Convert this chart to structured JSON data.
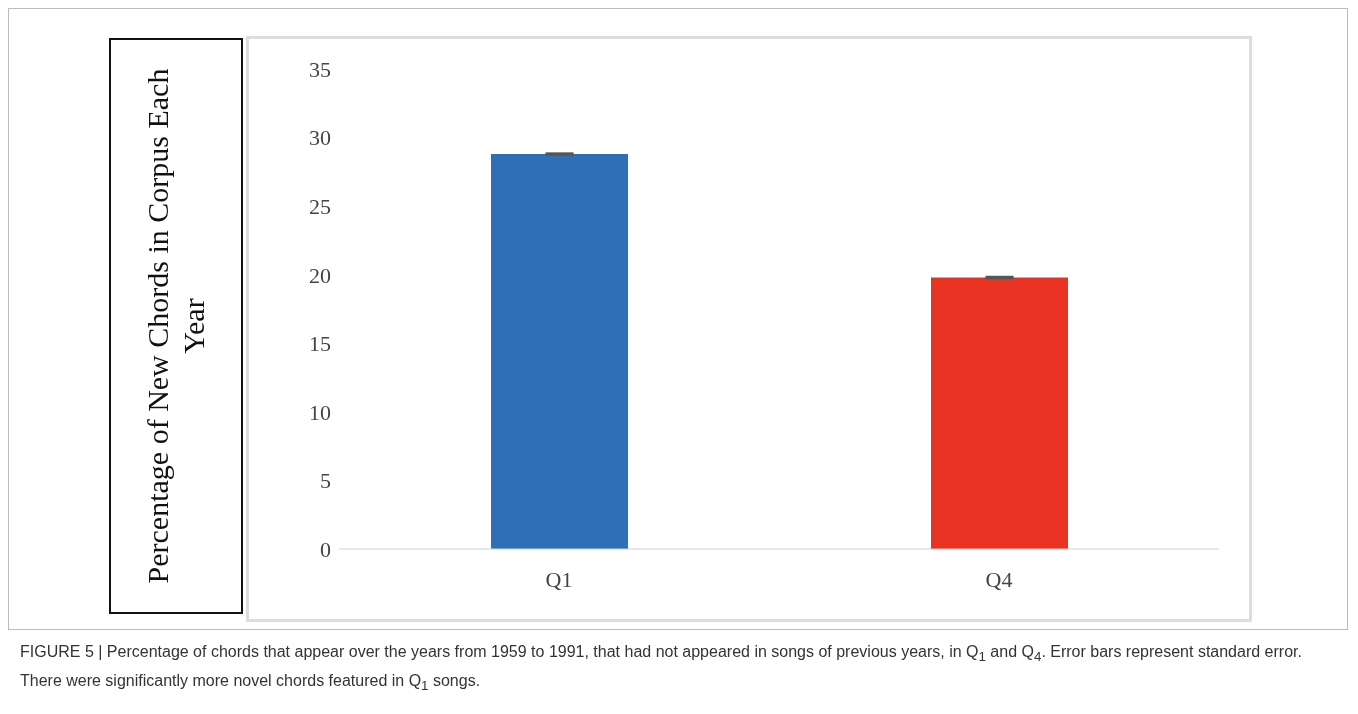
{
  "chart_data": {
    "type": "bar",
    "ylabel": "Percentage of New Chords in Corpus Each Year",
    "categories": [
      "Q1",
      "Q4"
    ],
    "values": [
      28.8,
      19.8
    ],
    "colors": [
      "#2e70b8",
      "#e83323"
    ],
    "errors": [
      0.05,
      0.05
    ],
    "ylim": [
      0,
      35
    ],
    "yticks": [
      0,
      5,
      10,
      15,
      20,
      25,
      30,
      35
    ],
    "grid": false,
    "legend": false,
    "annotations": [
      "FIGURE 5 | Percentage of chords that appear over the years from 1959 to 1991, that had not appeared in songs of previous years, in Q$_{1}$ and Q$_{4}$. Error bars represent standard error. There were significantly more novel chords featured in Q$_{1}$ songs."
    ]
  }
}
